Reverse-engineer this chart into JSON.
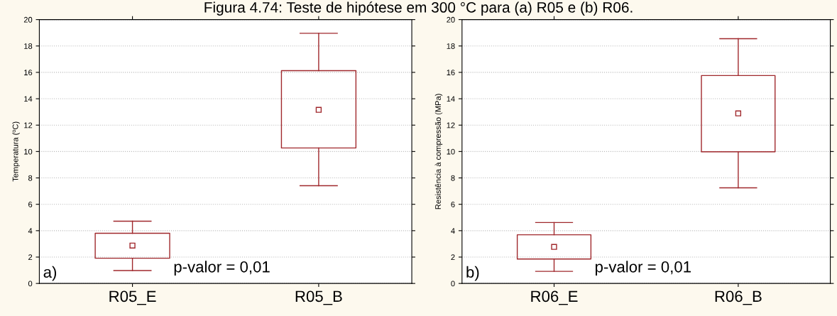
{
  "chart_data": [
    {
      "type": "box",
      "title": "Figura 4.74: Teste de hipótese em 300 °C para (a) R05 e (b) R06.",
      "ylabel": "Temperatura (ºC)",
      "categories": [
        "R05_E",
        "R05_B"
      ],
      "color": "#a0282c",
      "boxes": [
        {
          "low": 0.98,
          "q1": 1.91,
          "median": 2.87,
          "q3": 3.8,
          "high": 4.72
        },
        {
          "low": 7.41,
          "q1": 10.27,
          "median": 13.16,
          "q3": 16.13,
          "high": 18.96
        }
      ],
      "ylim": [
        0,
        20
      ],
      "yticks": [
        0,
        2,
        4,
        6,
        8,
        10,
        12,
        14,
        16,
        18,
        20
      ],
      "grid": "y",
      "annotations": [
        "a)",
        "p-valor = 0,01"
      ]
    },
    {
      "type": "box",
      "ylabel": "Resistência à compressão (MPa)",
      "categories": [
        "R06_E",
        "R06_B"
      ],
      "color": "#a0282c",
      "boxes": [
        {
          "low": 0.92,
          "q1": 1.85,
          "median": 2.77,
          "q3": 3.69,
          "high": 4.62
        },
        {
          "low": 7.25,
          "q1": 9.98,
          "median": 12.89,
          "q3": 15.76,
          "high": 18.55
        }
      ],
      "ylim": [
        0,
        20
      ],
      "yticks": [
        0,
        2,
        4,
        6,
        8,
        10,
        12,
        14,
        16,
        18,
        20
      ],
      "grid": "y",
      "annotations": [
        "b)",
        "p-valor = 0,01"
      ]
    }
  ]
}
